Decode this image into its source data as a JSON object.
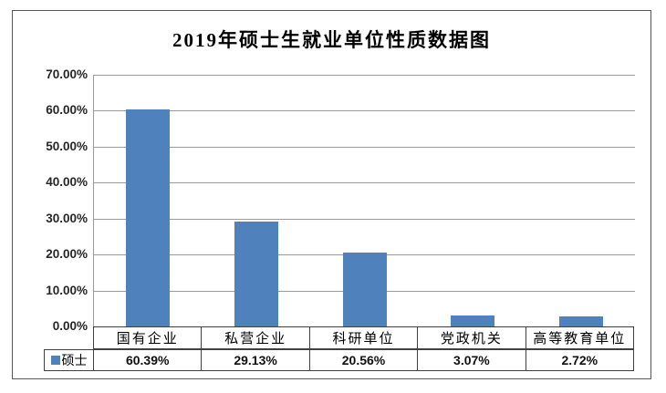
{
  "figure": {
    "title": "2019年硕士生就业单位性质数据图"
  },
  "chart_data": {
    "type": "bar",
    "title": "2019年硕士生就业单位性质数据图",
    "categories": [
      "国有企业",
      "私营企业",
      "科研单位",
      "党政机关",
      "高等教育单位"
    ],
    "series": [
      {
        "name": "硕士",
        "values": [
          60.39,
          29.13,
          20.56,
          3.07,
          2.72
        ]
      }
    ],
    "value_labels": [
      "60.39%",
      "29.13%",
      "20.56%",
      "3.07%",
      "2.72%"
    ],
    "y_ticks": [
      "70.00%",
      "60.00%",
      "50.00%",
      "40.00%",
      "30.00%",
      "20.00%",
      "10.00%",
      "0.00%"
    ],
    "xlabel": "",
    "ylabel": "",
    "ylim": [
      0,
      70
    ],
    "grid": true,
    "legend_position": "data-table-left",
    "bar_color": "#4F81BD",
    "gridline_color": "#9b9b9b"
  },
  "data_table": {
    "legend_label": "硕士",
    "columns": [
      "国有企业",
      "私营企业",
      "科研单位",
      "党政机关",
      "高等教育单位"
    ],
    "values": [
      "60.39%",
      "29.13%",
      "20.56%",
      "3.07%",
      "2.72%"
    ]
  }
}
